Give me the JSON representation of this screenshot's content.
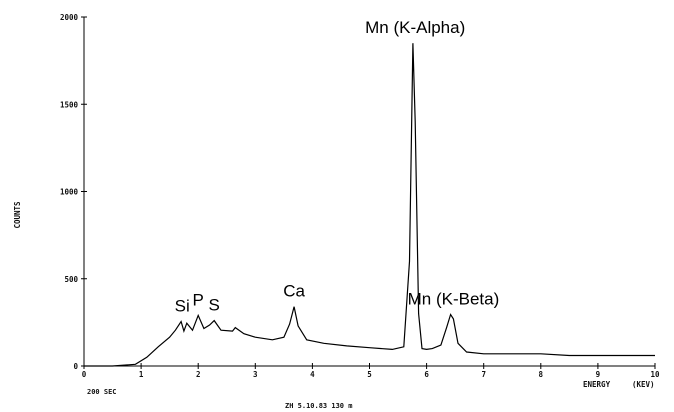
{
  "chart_data": {
    "type": "line",
    "title": "",
    "xlabel": "ENERGY",
    "xunit": "(KEV)",
    "ylabel": "COUNTS",
    "xlim": [
      0,
      10
    ],
    "ylim": [
      0,
      2000
    ],
    "x_ticks": [
      0,
      1,
      2,
      3,
      4,
      5,
      6,
      7,
      8,
      9,
      10
    ],
    "y_ticks": [
      0,
      500,
      1000,
      1500,
      2000
    ],
    "grid": false,
    "series": [
      {
        "x": [
          0,
          0.5,
          0.9,
          1.1,
          1.3,
          1.5,
          1.6,
          1.7,
          1.75,
          1.8,
          1.9,
          2.0,
          2.1,
          2.2,
          2.28,
          2.4,
          2.6,
          2.65,
          2.8,
          3.0,
          3.3,
          3.5,
          3.6,
          3.68,
          3.75,
          3.9,
          4.2,
          4.6,
          5.0,
          5.4,
          5.6,
          5.7,
          5.76,
          5.8,
          5.86,
          5.92,
          6.0,
          6.1,
          6.25,
          6.35,
          6.42,
          6.47,
          6.55,
          6.7,
          7.0,
          7.5,
          8.0,
          8.5,
          9.0,
          9.5,
          10.0
        ],
        "y": [
          0,
          0,
          10,
          50,
          110,
          165,
          205,
          255,
          200,
          245,
          205,
          290,
          215,
          235,
          260,
          205,
          200,
          220,
          185,
          165,
          150,
          165,
          240,
          340,
          230,
          150,
          130,
          115,
          105,
          95,
          110,
          600,
          1850,
          1400,
          300,
          100,
          95,
          100,
          120,
          220,
          295,
          270,
          130,
          80,
          70,
          70,
          70,
          60,
          60,
          60,
          60
        ]
      }
    ],
    "annotations": [
      {
        "text": "Mn (K-Alpha)",
        "x": 5.8,
        "y": 1850
      },
      {
        "text": "Mn (K-Beta)",
        "x": 6.47,
        "y": 295
      },
      {
        "text": "Ca",
        "x": 3.68,
        "y": 340
      },
      {
        "text": "S",
        "x": 2.28,
        "y": 260
      },
      {
        "text": "P",
        "x": 2.0,
        "y": 290
      },
      {
        "text": "Si",
        "x": 1.72,
        "y": 255
      }
    ]
  },
  "footer": {
    "live_time": "200 SEC",
    "sample_id": "ZH 5.10.83 130 m"
  }
}
